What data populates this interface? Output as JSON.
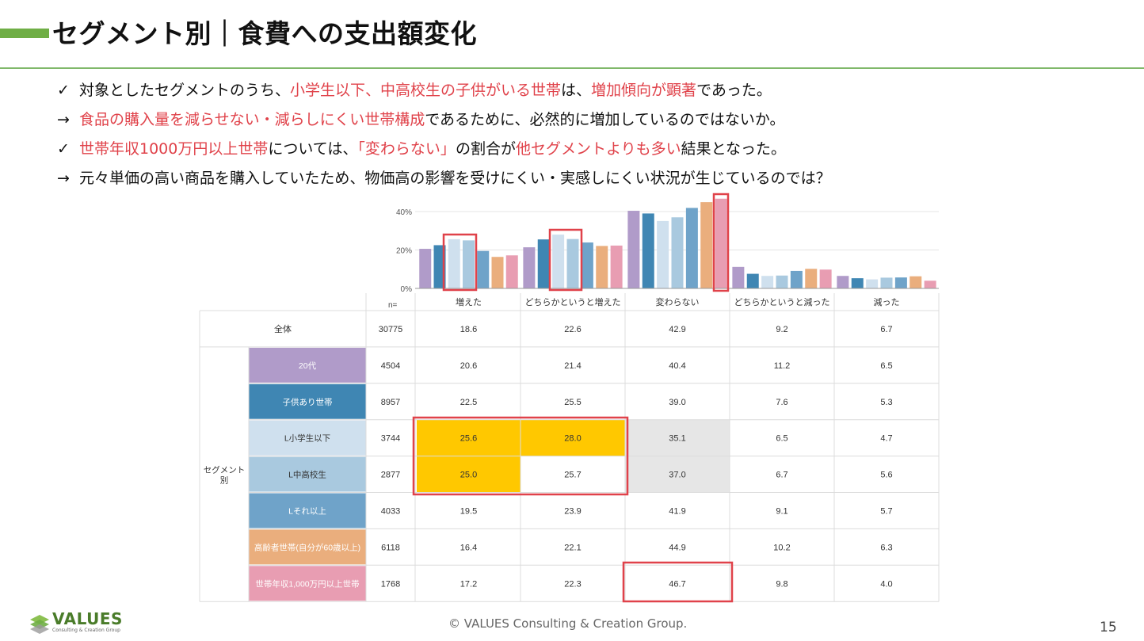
{
  "title": "セグメント別｜食費への支出額変化",
  "bullets": [
    {
      "mark": "✓",
      "parts": [
        {
          "t": "対象としたセグメントのうち、",
          "hl": false
        },
        {
          "t": "小学生以下、中高校生の子供がいる世帯",
          "hl": true
        },
        {
          "t": "は、",
          "hl": false
        },
        {
          "t": "増加傾向が顕著",
          "hl": true
        },
        {
          "t": "であった。",
          "hl": false
        }
      ]
    },
    {
      "mark": "→",
      "parts": [
        {
          "t": "食品の購入量を減らせない・減らしにくい世帯構成",
          "hl": true
        },
        {
          "t": "であるために、必然的に増加しているのではないか。",
          "hl": false
        }
      ]
    },
    {
      "mark": "✓",
      "parts": [
        {
          "t": "世帯年収1000万円以上世帯",
          "hl": true
        },
        {
          "t": "については、",
          "hl": false
        },
        {
          "t": "「変わらない」",
          "hl": true
        },
        {
          "t": "の割合が",
          "hl": false
        },
        {
          "t": "他セグメントよりも多い",
          "hl": true
        },
        {
          "t": "結果となった。",
          "hl": false
        }
      ]
    },
    {
      "mark": "→",
      "parts": [
        {
          "t": "元々単価の高い商品を購入していたため、物価高の影響を受けにくい・実感しにくい状況が生じているのでは？",
          "hl": false
        }
      ]
    }
  ],
  "chart_data": {
    "type": "bar",
    "categories": [
      "増えた",
      "どちらかというと増えた",
      "変わらない",
      "どちらかというと減った",
      "減った"
    ],
    "y_ticks": [
      "0%",
      "20%",
      "40%"
    ],
    "ylim": [
      0,
      50
    ],
    "n_label": "n=",
    "total_row": {
      "label": "全体",
      "n": "30775",
      "values": [
        "18.6",
        "22.6",
        "42.9",
        "9.2",
        "6.7"
      ]
    },
    "segment_group_label": "セグメント別",
    "series": [
      {
        "name": "20代",
        "n": "4504",
        "values": [
          20.6,
          21.4,
          40.4,
          11.2,
          6.5
        ],
        "display": [
          "20.6",
          "21.4",
          "40.4",
          "11.2",
          "6.5"
        ],
        "color": "#b09bc9"
      },
      {
        "name": "子供あり世帯",
        "n": "8957",
        "values": [
          22.5,
          25.5,
          39.0,
          7.6,
          5.3
        ],
        "display": [
          "22.5",
          "25.5",
          "39.0",
          "7.6",
          "5.3"
        ],
        "color": "#3f86b3"
      },
      {
        "name": "L小学生以下",
        "n": "3744",
        "values": [
          25.6,
          28.0,
          35.1,
          6.5,
          4.7
        ],
        "display": [
          "25.6",
          "28.0",
          "35.1",
          "6.5",
          "4.7"
        ],
        "color": "#cfe0ee"
      },
      {
        "name": "L中高校生",
        "n": "2877",
        "values": [
          25.0,
          25.7,
          37.0,
          6.7,
          5.6
        ],
        "display": [
          "25.0",
          "25.7",
          "37.0",
          "6.7",
          "5.6"
        ],
        "color": "#a9c9df"
      },
      {
        "name": "Lそれ以上",
        "n": "4033",
        "values": [
          19.5,
          23.9,
          41.9,
          9.1,
          5.7
        ],
        "display": [
          "19.5",
          "23.9",
          "41.9",
          "9.1",
          "5.7"
        ],
        "color": "#6fa3c9"
      },
      {
        "name": "高齢者世帯(自分が60歳以上)",
        "n": "6118",
        "values": [
          16.4,
          22.1,
          44.9,
          10.2,
          6.3
        ],
        "display": [
          "16.4",
          "22.1",
          "44.9",
          "10.2",
          "6.3"
        ],
        "color": "#eaae7d"
      },
      {
        "name": "世帯年収1,000万円以上世帯",
        "n": "1768",
        "values": [
          17.2,
          22.3,
          46.7,
          9.8,
          4.0
        ],
        "display": [
          "17.2",
          "22.3",
          "46.7",
          "9.8",
          "4.0"
        ],
        "color": "#e89db2"
      }
    ],
    "grid": true
  },
  "colors": {
    "highlight_red": "#e0424a",
    "cell_yellow": "#ffc800",
    "cell_gray": "#e6e6e6",
    "accent_green": "#6fae45"
  },
  "footer": {
    "copyright": "© VALUES Consulting & Creation Group.",
    "page": "15",
    "logo_text": "VALUES",
    "logo_sub": "Consulting & Creation Group"
  }
}
